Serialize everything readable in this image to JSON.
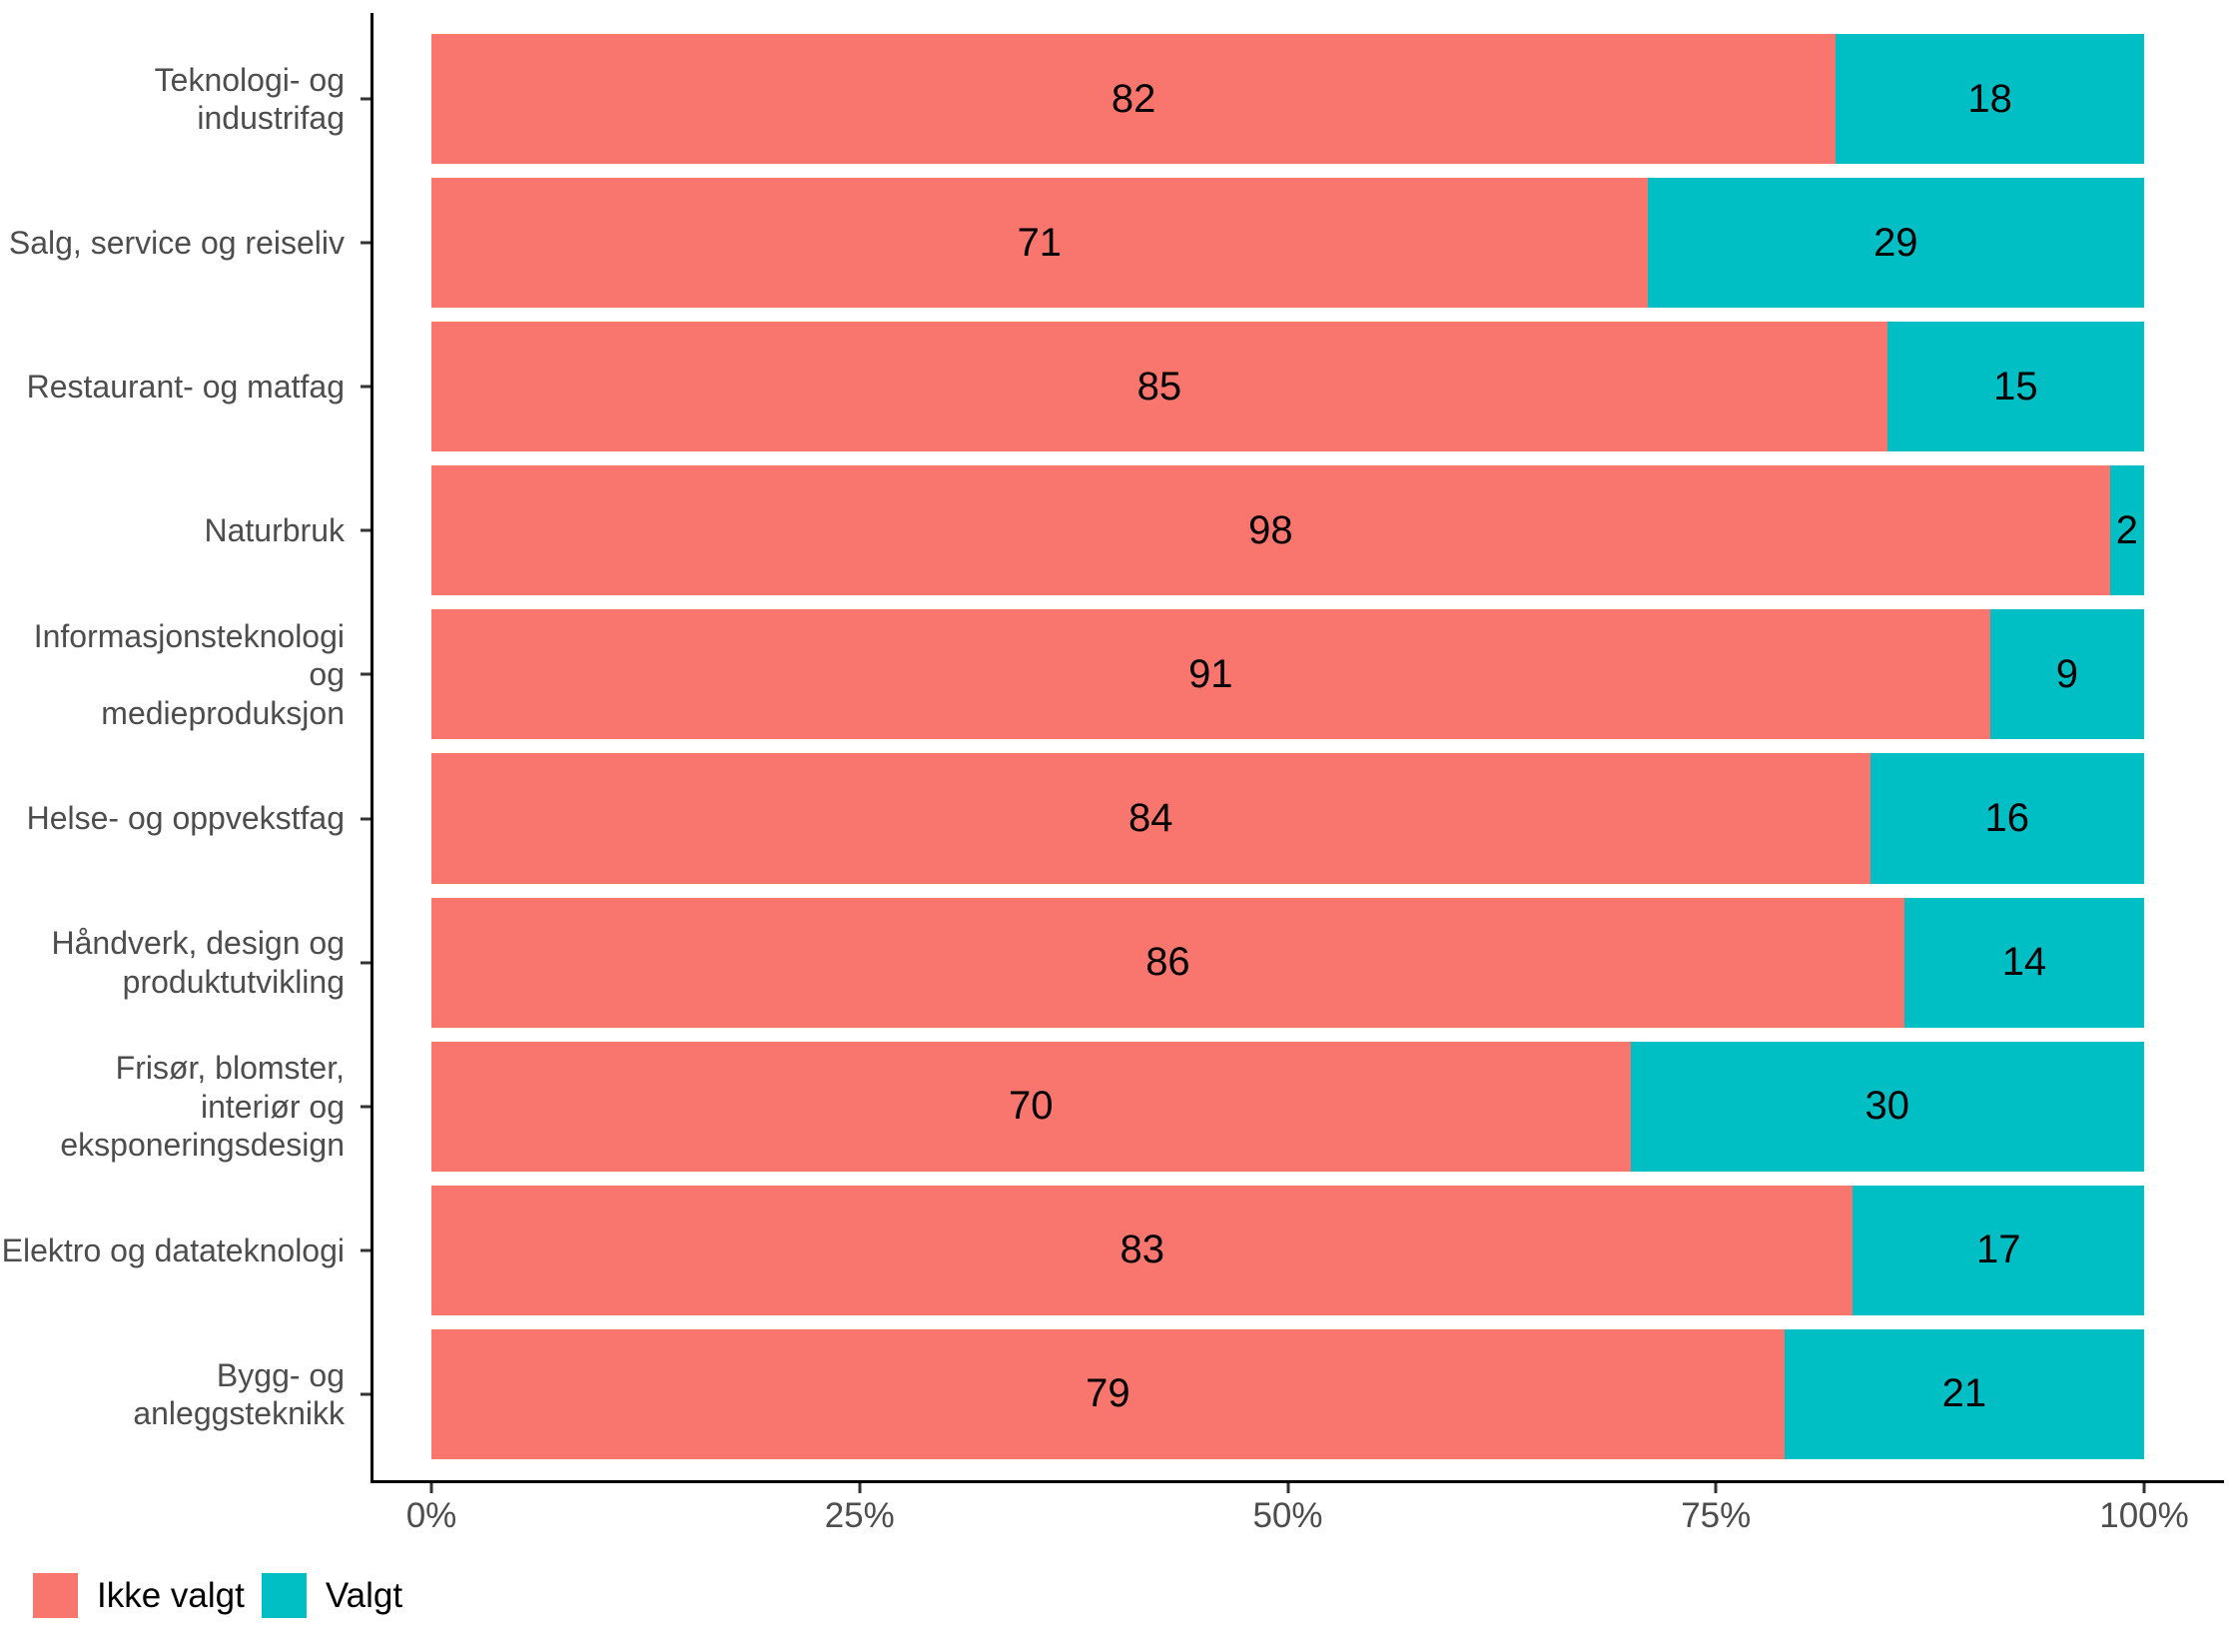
{
  "colors": {
    "ikke_valgt": "#F8766D",
    "valgt": "#00BFC4",
    "axis_line": "#000000",
    "tick_mark": "#333333",
    "axis_text": "#4D4D4D",
    "value_label": "#000000",
    "background": "#FFFFFF"
  },
  "chart_data": {
    "type": "bar",
    "orientation": "horizontal",
    "stacked": true,
    "unit": "percent",
    "grid": "off",
    "categories": [
      "Teknologi- og industrifag",
      "Salg, service og reiseliv",
      "Restaurant- og matfag",
      "Naturbruk",
      "Informasjonsteknologi og medieproduksjon",
      "Helse- og oppvekstfag",
      "Håndverk, design og produktutvikling",
      "Frisør, blomster, interiør og eksponeringsdesign",
      "Elektro og datateknologi",
      "Bygg- og anleggsteknikk"
    ],
    "category_display_lines": [
      [
        "Teknologi- og industrifag"
      ],
      [
        "Salg, service og reiseliv"
      ],
      [
        "Restaurant- og matfag"
      ],
      [
        "Naturbruk"
      ],
      [
        "Informasjonsteknologi og",
        "medieproduksjon"
      ],
      [
        "Helse- og oppvekstfag"
      ],
      [
        "Håndverk, design og",
        "produktutvikling"
      ],
      [
        "Frisør, blomster,",
        "interiør og",
        "eksponeringsdesign"
      ],
      [
        "Elektro og datateknologi"
      ],
      [
        "Bygg- og anleggsteknikk"
      ]
    ],
    "series": [
      {
        "name": "Ikke valgt",
        "color": "#F8766D",
        "values": [
          82,
          71,
          85,
          98,
          91,
          84,
          86,
          70,
          83,
          79
        ]
      },
      {
        "name": "Valgt",
        "color": "#00BFC4",
        "values": [
          18,
          29,
          15,
          2,
          9,
          16,
          14,
          30,
          17,
          21
        ]
      }
    ],
    "value_labels_shown": true,
    "x_axis": {
      "range": [
        0,
        100
      ],
      "ticks": [
        {
          "value": 0,
          "label": "0%"
        },
        {
          "value": 25,
          "label": "25%"
        },
        {
          "value": 50,
          "label": "50%"
        },
        {
          "value": 75,
          "label": "75%"
        },
        {
          "value": 100,
          "label": "100%"
        }
      ]
    },
    "legend": {
      "position": "bottom-left",
      "items": [
        {
          "label": "Ikke valgt",
          "color": "#F8766D"
        },
        {
          "label": "Valgt",
          "color": "#00BFC4"
        }
      ]
    }
  }
}
